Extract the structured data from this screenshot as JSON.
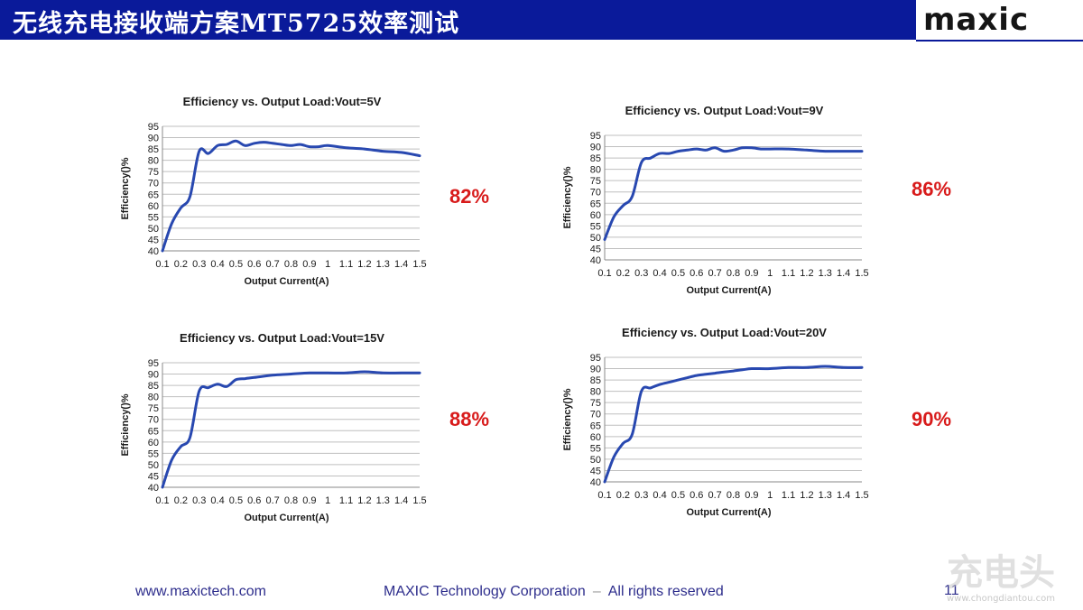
{
  "header": {
    "title": "无线充电接收端方案MT5725效率测试",
    "logo_text": "maxic"
  },
  "footer": {
    "website": "www.maxictech.com",
    "company": "MAXIC Technology Corporation",
    "separator": "–",
    "rights": "All rights reserved",
    "page_number": "11"
  },
  "watermark": {
    "text": "www.chongdiantou.com"
  },
  "colors": {
    "header": "#0a1a9a",
    "line": "#2848b0",
    "percent": "#d81b1b",
    "grid": "#bfbfbf"
  },
  "summaries": [
    "82%",
    "86%",
    "88%",
    "90%"
  ],
  "chart_data": [
    {
      "type": "line",
      "title": "Efficiency vs. Output Load:Vout=5V",
      "xlabel": "Output Current(A)",
      "ylabel": "Efficiency()%",
      "ylim": [
        40,
        95
      ],
      "yticks": [
        40,
        45,
        50,
        55,
        60,
        65,
        70,
        75,
        80,
        85,
        90,
        95
      ],
      "xticks": [
        "0.1",
        "0.2",
        "0.3",
        "0.4",
        "0.5",
        "0.6",
        "0.7",
        "0.8",
        "0.9",
        "1",
        "1.1",
        "1.2",
        "1.3",
        "1.4",
        "1.5"
      ],
      "grid": true,
      "x": [
        0.1,
        0.15,
        0.2,
        0.25,
        0.3,
        0.35,
        0.4,
        0.45,
        0.5,
        0.55,
        0.6,
        0.65,
        0.7,
        0.75,
        0.8,
        0.85,
        0.9,
        0.95,
        1.0,
        1.1,
        1.2,
        1.3,
        1.4,
        1.5
      ],
      "y": [
        40,
        52,
        59,
        64,
        84,
        83,
        86.5,
        87,
        88.5,
        86.5,
        87.5,
        88,
        87.5,
        87,
        86.5,
        87,
        86,
        86,
        86.5,
        85.5,
        85,
        84,
        83.5,
        82
      ]
    },
    {
      "type": "line",
      "title": "Efficiency vs. Output Load:Vout=9V",
      "xlabel": "Output Current(A)",
      "ylabel": "Efficiency()%",
      "ylim": [
        40,
        95
      ],
      "yticks": [
        40,
        45,
        50,
        55,
        60,
        65,
        70,
        75,
        80,
        85,
        90,
        95
      ],
      "xticks": [
        "0.1",
        "0.2",
        "0.3",
        "0.4",
        "0.5",
        "0.6",
        "0.7",
        "0.8",
        "0.9",
        "1",
        "1.1",
        "1.2",
        "1.3",
        "1.4",
        "1.5"
      ],
      "grid": true,
      "x": [
        0.1,
        0.15,
        0.2,
        0.25,
        0.3,
        0.35,
        0.4,
        0.45,
        0.5,
        0.55,
        0.6,
        0.65,
        0.7,
        0.75,
        0.8,
        0.85,
        0.9,
        0.95,
        1.0,
        1.1,
        1.2,
        1.3,
        1.4,
        1.5
      ],
      "y": [
        49,
        59,
        64,
        68,
        83,
        85,
        87,
        87,
        88,
        88.5,
        89,
        88.5,
        89.5,
        88,
        88.5,
        89.5,
        89.5,
        89,
        89,
        89,
        88.5,
        88,
        88,
        88
      ]
    },
    {
      "type": "line",
      "title": "Efficiency vs. Output Load:Vout=15V",
      "xlabel": "Output Current(A)",
      "ylabel": "Efficiency()%",
      "ylim": [
        40,
        95
      ],
      "yticks": [
        40,
        45,
        50,
        55,
        60,
        65,
        70,
        75,
        80,
        85,
        90,
        95
      ],
      "xticks": [
        "0.1",
        "0.2",
        "0.3",
        "0.4",
        "0.5",
        "0.6",
        "0.7",
        "0.8",
        "0.9",
        "1",
        "1.1",
        "1.2",
        "1.3",
        "1.4",
        "1.5"
      ],
      "grid": true,
      "x": [
        0.1,
        0.15,
        0.2,
        0.25,
        0.3,
        0.35,
        0.4,
        0.45,
        0.5,
        0.55,
        0.6,
        0.7,
        0.8,
        0.9,
        1.0,
        1.1,
        1.2,
        1.3,
        1.4,
        1.5
      ],
      "y": [
        40,
        52,
        58,
        62,
        82.5,
        84,
        85.5,
        84.5,
        87.5,
        88,
        88.5,
        89.5,
        90,
        90.5,
        90.5,
        90.5,
        91,
        90.5,
        90.5,
        90.5
      ]
    },
    {
      "type": "line",
      "title": "Efficiency vs. Output Load:Vout=20V",
      "xlabel": "Output Current(A)",
      "ylabel": "Efficiency()%",
      "ylim": [
        40,
        95
      ],
      "yticks": [
        40,
        45,
        50,
        55,
        60,
        65,
        70,
        75,
        80,
        85,
        90,
        95
      ],
      "xticks": [
        "0.1",
        "0.2",
        "0.3",
        "0.4",
        "0.5",
        "0.6",
        "0.7",
        "0.8",
        "0.9",
        "1",
        "1.1",
        "1.2",
        "1.3",
        "1.4",
        "1.5"
      ],
      "grid": true,
      "x": [
        0.1,
        0.15,
        0.2,
        0.25,
        0.3,
        0.35,
        0.4,
        0.45,
        0.5,
        0.55,
        0.6,
        0.65,
        0.7,
        0.75,
        0.8,
        0.85,
        0.9,
        1.0,
        1.1,
        1.2,
        1.3,
        1.4,
        1.5
      ],
      "y": [
        40,
        51,
        57,
        61,
        80,
        81.5,
        83,
        84,
        85,
        86,
        87,
        87.5,
        88,
        88.5,
        89,
        89.5,
        90,
        90,
        90.5,
        90.5,
        91,
        90.5,
        90.5
      ]
    }
  ]
}
